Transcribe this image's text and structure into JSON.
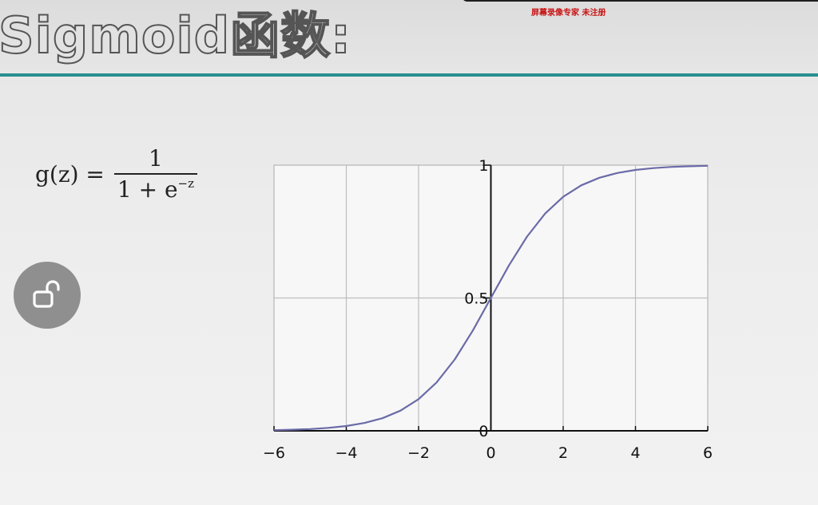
{
  "slide": {
    "title": "Sigmoid函数:",
    "watermark": "屏幕录像专家 未注册"
  },
  "formula": {
    "lhs": "g(z) =",
    "numerator": "1",
    "denominator_base": "1 + e",
    "denominator_exponent": "−z"
  },
  "icons": {
    "lock": "unlock-icon"
  },
  "colors": {
    "title_rule": "#2a8f8f",
    "curve": "#6b6ba8",
    "grid": "#bdbdbd",
    "lock_bg": "#8f8f8f"
  },
  "chart_data": {
    "type": "line",
    "title": "",
    "xlabel": "",
    "ylabel": "",
    "xlim": [
      -6,
      6
    ],
    "ylim": [
      0,
      1
    ],
    "grid": true,
    "xticks": [
      -6,
      -4,
      -2,
      0,
      2,
      4,
      6
    ],
    "xtick_labels": [
      "−6",
      "−4",
      "−2",
      "0",
      "2",
      "4",
      "6"
    ],
    "yticks": [
      0,
      0.5,
      1
    ],
    "ytick_labels": [
      "0",
      "0.5",
      "1"
    ],
    "series": [
      {
        "x": [
          -6,
          -5.5,
          -5,
          -4.5,
          -4,
          -3.5,
          -3,
          -2.5,
          -2,
          -1.5,
          -1,
          -0.5,
          0,
          0.5,
          1,
          1.5,
          2,
          2.5,
          3,
          3.5,
          4,
          4.5,
          5,
          5.5,
          6
        ],
        "y": [
          0.0025,
          0.0041,
          0.0067,
          0.011,
          0.018,
          0.0293,
          0.0474,
          0.0759,
          0.1192,
          0.1824,
          0.2689,
          0.3775,
          0.5,
          0.6225,
          0.7311,
          0.8176,
          0.8808,
          0.9241,
          0.9526,
          0.9707,
          0.982,
          0.989,
          0.9933,
          0.9959,
          0.9975
        ]
      }
    ]
  }
}
